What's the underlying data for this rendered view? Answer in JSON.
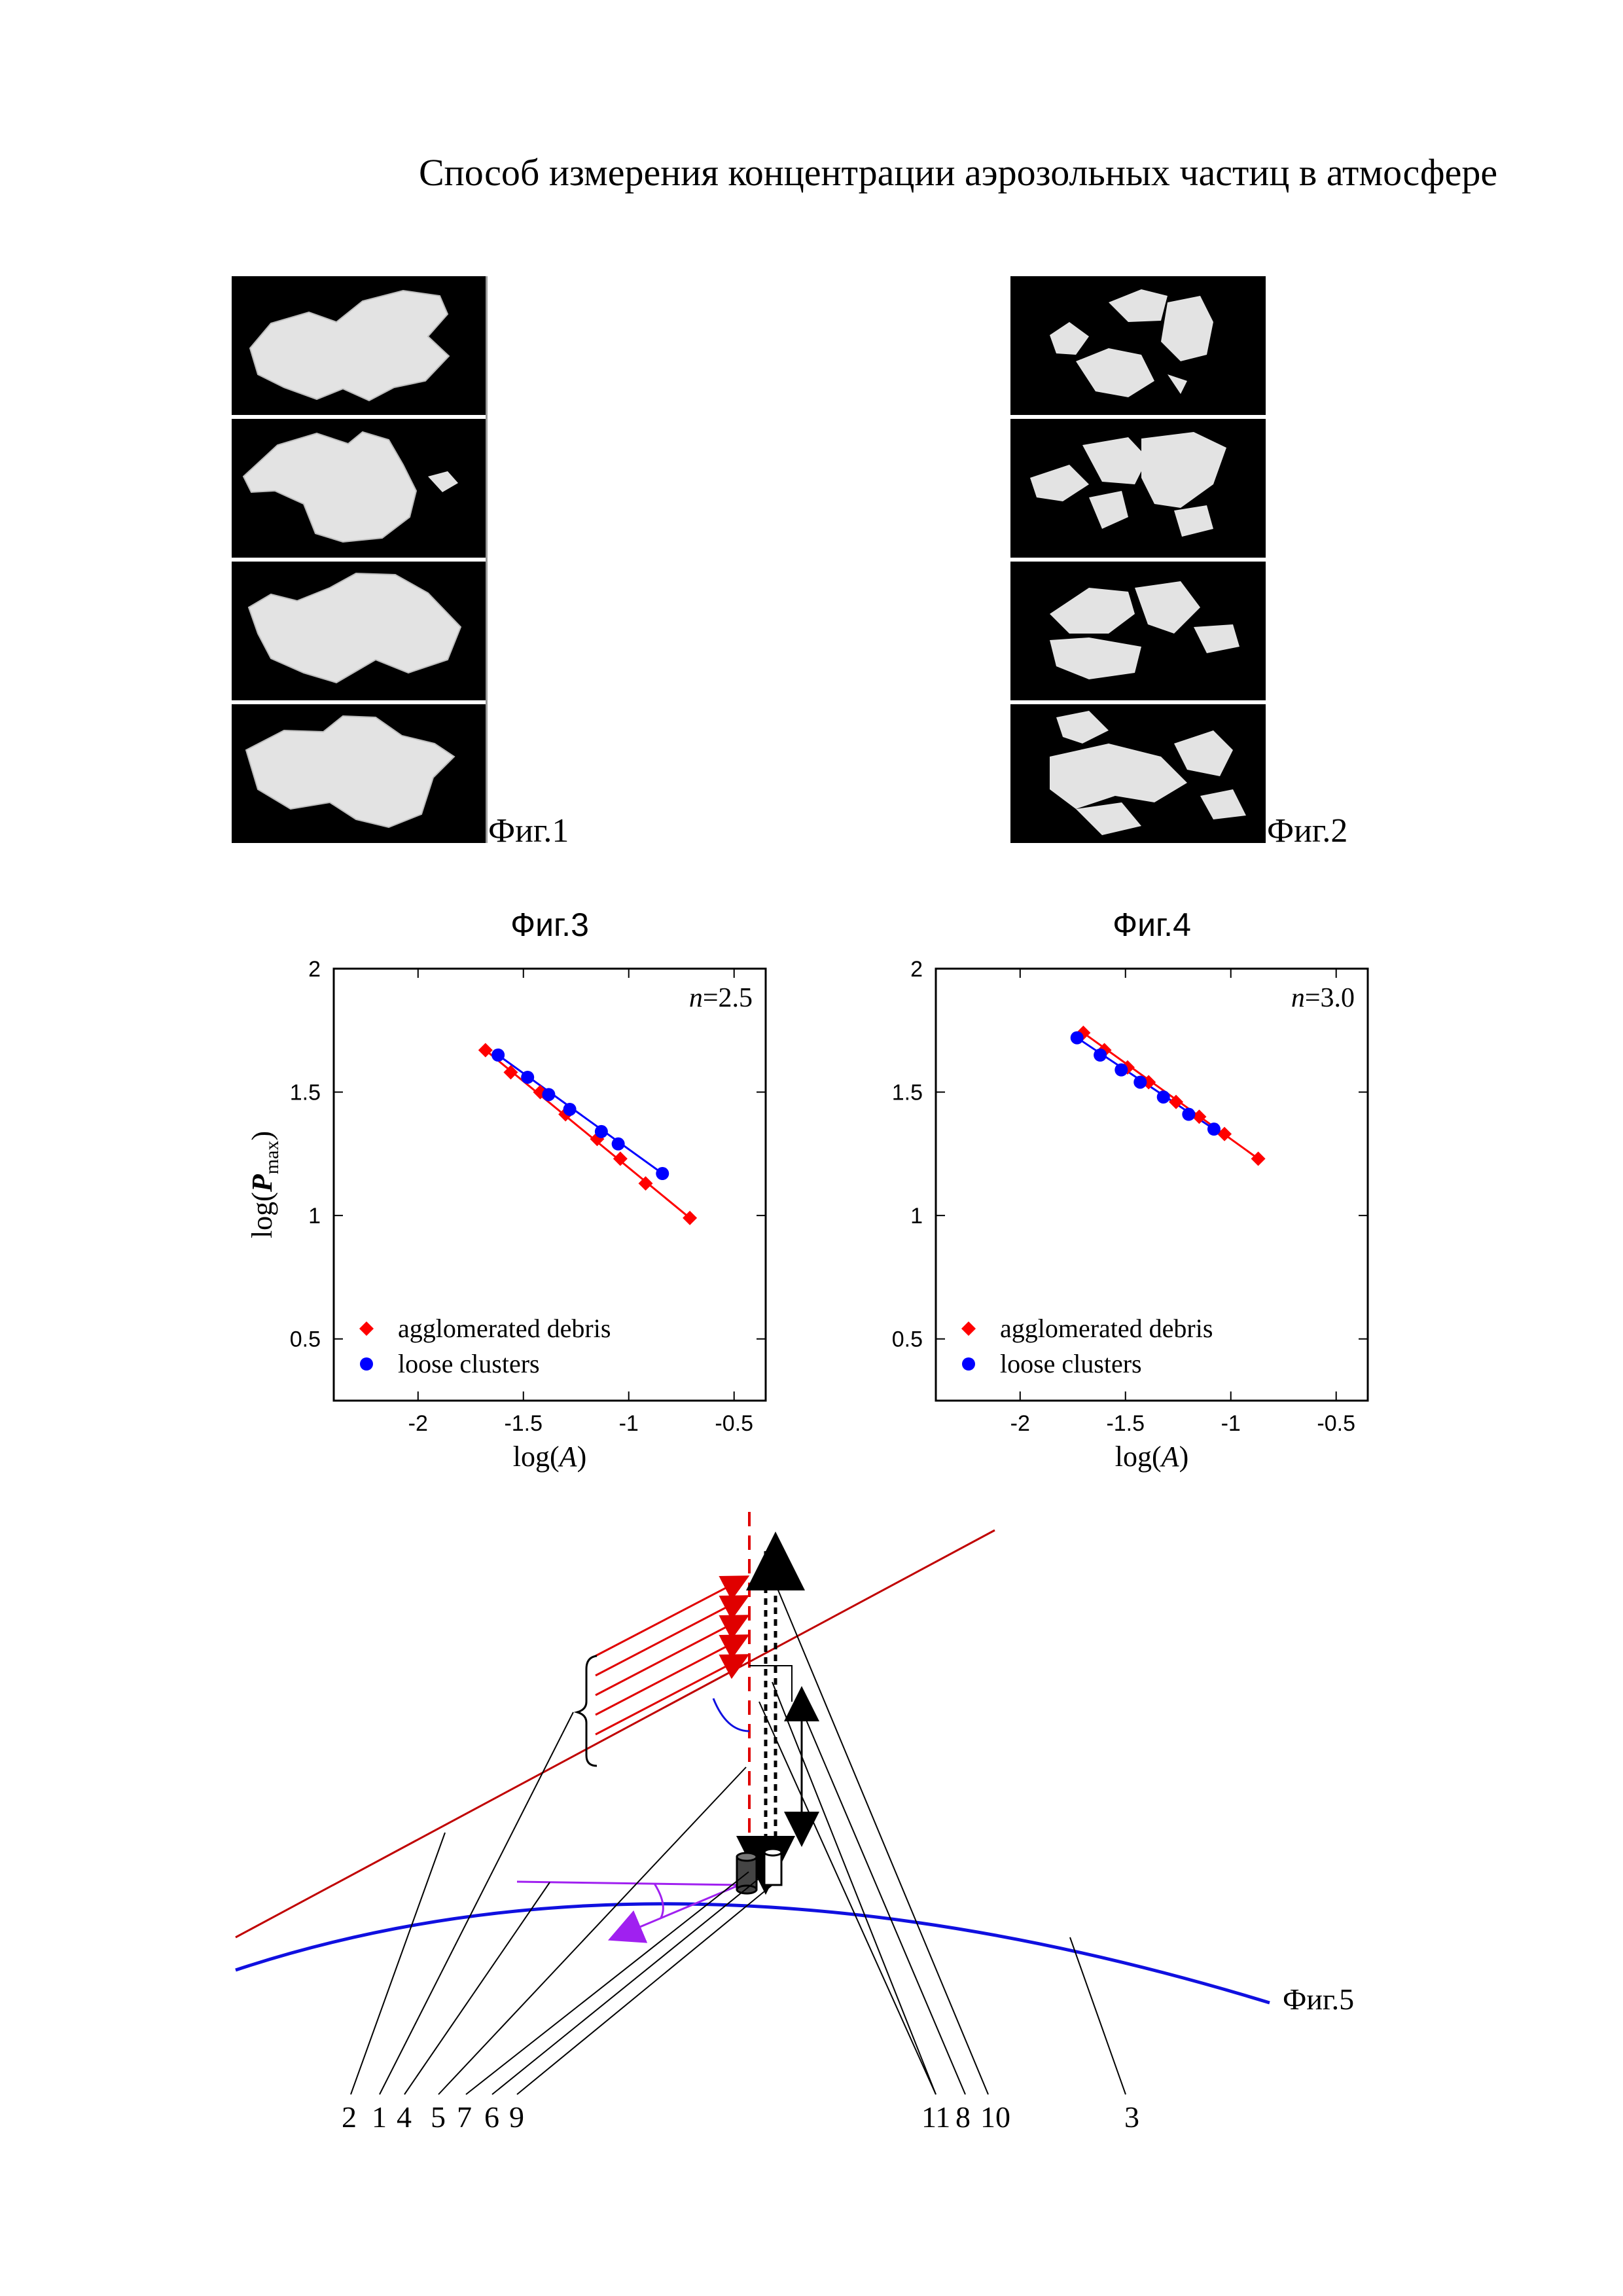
{
  "title": "Способ измерения концентрации аэрозольных частиц в атмосфере",
  "figure1": {
    "caption": "Фиг.1"
  },
  "figure2": {
    "caption": "Фиг.2"
  },
  "chart_data": [
    {
      "type": "scatter",
      "title": "Фиг.3",
      "annotation_text": "=2.5",
      "annotation_var": "n",
      "xlabel": "log(A)",
      "ylabel": "log(P_max)",
      "xlim": [
        -2.4,
        -0.35
      ],
      "ylim": [
        0.25,
        2.0
      ],
      "xticks": [
        -2,
        -1.5,
        -1,
        -0.5
      ],
      "yticks": [
        0.5,
        1,
        1.5,
        2
      ],
      "xtick_labels": [
        "-2",
        "-1.5",
        "-1",
        "-0.5"
      ],
      "ytick_labels": [
        "0.5",
        "1",
        "1.5",
        "2"
      ],
      "legend_position": "bottom-left",
      "series": [
        {
          "name": "agglomerated debris",
          "color": "#ff0000",
          "marker": "diamond",
          "x": [
            -1.68,
            -1.56,
            -1.42,
            -1.3,
            -1.15,
            -1.04,
            -0.92,
            -0.71
          ],
          "y": [
            1.67,
            1.58,
            1.5,
            1.41,
            1.31,
            1.23,
            1.13,
            0.99
          ],
          "fit": {
            "x": [
              -1.68,
              -0.71
            ],
            "y": [
              1.67,
              0.99
            ]
          }
        },
        {
          "name": "loose clusters",
          "color": "#0000ff",
          "marker": "circle",
          "x": [
            -1.62,
            -1.48,
            -1.38,
            -1.28,
            -1.13,
            -1.05,
            -0.84
          ],
          "y": [
            1.65,
            1.56,
            1.49,
            1.43,
            1.34,
            1.29,
            1.17
          ],
          "fit": {
            "x": [
              -1.62,
              -0.84
            ],
            "y": [
              1.65,
              1.17
            ]
          }
        }
      ]
    },
    {
      "type": "scatter",
      "title": "Фиг.4",
      "annotation_text": "=3.0",
      "annotation_var": "n",
      "xlabel": "log(A)",
      "ylabel": "",
      "xlim": [
        -2.4,
        -0.35
      ],
      "ylim": [
        0.25,
        2.0
      ],
      "xticks": [
        -2,
        -1.5,
        -1,
        -0.5
      ],
      "yticks": [
        0.5,
        1,
        1.5,
        2
      ],
      "xtick_labels": [
        "-2",
        "-1.5",
        "-1",
        "-0.5"
      ],
      "ytick_labels": [
        "0.5",
        "1",
        "1.5",
        "2"
      ],
      "legend_position": "bottom-left",
      "series": [
        {
          "name": "agglomerated debris",
          "color": "#ff0000",
          "marker": "diamond",
          "x": [
            -1.7,
            -1.6,
            -1.49,
            -1.39,
            -1.26,
            -1.15,
            -1.03,
            -0.87
          ],
          "y": [
            1.74,
            1.67,
            1.6,
            1.54,
            1.46,
            1.4,
            1.33,
            1.23
          ],
          "fit": {
            "x": [
              -1.7,
              -0.87
            ],
            "y": [
              1.74,
              1.23
            ]
          }
        },
        {
          "name": "loose clusters",
          "color": "#0000ff",
          "marker": "circle",
          "x": [
            -1.73,
            -1.62,
            -1.52,
            -1.43,
            -1.32,
            -1.2,
            -1.08
          ],
          "y": [
            1.72,
            1.65,
            1.59,
            1.54,
            1.48,
            1.41,
            1.35
          ],
          "fit": {
            "x": [
              -1.73,
              -1.08
            ],
            "y": [
              1.72,
              1.35
            ]
          }
        }
      ]
    }
  ],
  "figure5": {
    "caption": "Фиг.5",
    "callouts": [
      "2",
      "1",
      "4",
      "5",
      "7",
      "6",
      "9",
      "11",
      "8",
      "10",
      "3"
    ]
  }
}
